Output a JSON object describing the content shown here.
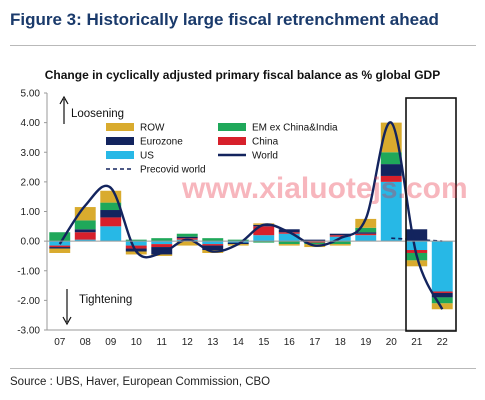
{
  "figure_title": "Figure 3: Historically large fiscal retrenchment ahead",
  "source": "Source : UBS, Haver, European Commission, CBO",
  "watermark": "www.xialuotejs.com",
  "colors": {
    "ROW": "#d9ab2e",
    "EM ex China&India": "#1fa85a",
    "Eurozone": "#13245e",
    "China": "#d7202b",
    "US": "#27b8e6",
    "World": "#13245e",
    "Precovid world": "#13245e",
    "title": "#1a3a6b"
  },
  "chart_data": {
    "type": "bar",
    "title": "Change in cyclically adjusted primary fiscal balance as % global GDP",
    "xlabel": "",
    "ylabel": "",
    "categories": [
      "07",
      "08",
      "09",
      "10",
      "11",
      "12",
      "13",
      "14",
      "15",
      "16",
      "17",
      "18",
      "19",
      "20",
      "21",
      "22"
    ],
    "ylim": [
      -3.0,
      5.0
    ],
    "yticks": [
      "5.00",
      "4.00",
      "3.00",
      "2.00",
      "1.00",
      "0.00",
      "-1.00",
      "-2.00",
      "-3.00"
    ],
    "series": [
      {
        "name": "US",
        "kind": "bar",
        "values": [
          -0.15,
          0.05,
          0.5,
          -0.15,
          -0.1,
          0.05,
          -0.1,
          -0.05,
          0.2,
          0.25,
          0.0,
          0.15,
          0.2,
          2.0,
          -0.3,
          -1.7
        ]
      },
      {
        "name": "China",
        "kind": "bar",
        "values": [
          -0.05,
          0.25,
          0.3,
          -0.1,
          -0.1,
          0.05,
          -0.05,
          0.0,
          0.3,
          0.05,
          -0.05,
          0.05,
          0.05,
          0.2,
          -0.1,
          -0.05
        ]
      },
      {
        "name": "Eurozone",
        "kind": "bar",
        "values": [
          -0.05,
          0.1,
          0.25,
          -0.1,
          -0.25,
          0.05,
          -0.15,
          -0.05,
          0.05,
          0.1,
          0.05,
          0.05,
          0.05,
          0.4,
          0.4,
          -0.15
        ]
      },
      {
        "name": "EM ex China&India",
        "kind": "bar",
        "values": [
          0.3,
          0.3,
          0.25,
          0.05,
          0.1,
          0.1,
          0.1,
          0.05,
          -0.05,
          -0.1,
          -0.05,
          -0.1,
          0.15,
          0.4,
          -0.25,
          -0.2
        ]
      },
      {
        "name": "ROW",
        "kind": "bar",
        "values": [
          -0.15,
          0.45,
          0.4,
          -0.1,
          -0.05,
          -0.15,
          -0.1,
          -0.05,
          0.05,
          -0.05,
          -0.1,
          -0.05,
          0.3,
          1.0,
          -0.2,
          -0.2
        ]
      },
      {
        "name": "World",
        "kind": "line",
        "values": [
          -0.1,
          1.2,
          1.8,
          -0.35,
          -0.4,
          0.05,
          -0.35,
          -0.1,
          0.55,
          0.3,
          -0.15,
          0.1,
          0.75,
          4.0,
          -0.5,
          -2.3
        ]
      },
      {
        "name": "Precovid world",
        "kind": "dashed",
        "x": [
          "20",
          "21",
          "22"
        ],
        "values": [
          0.1,
          0.05,
          0.0
        ]
      }
    ],
    "legend": [
      "ROW",
      "EM ex China&India",
      "Eurozone",
      "China",
      "US",
      "World",
      "Precovid world"
    ],
    "annotations": [
      "Loosening",
      "Tightening"
    ],
    "highlight": [
      "21",
      "22"
    ]
  }
}
